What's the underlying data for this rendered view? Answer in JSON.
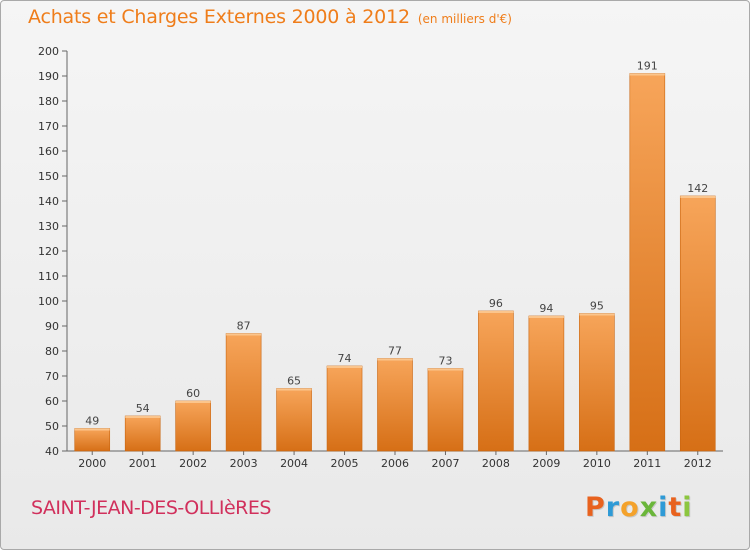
{
  "header": {
    "title": "Achats et Charges Externes 2000 à 2012",
    "subtitle": "(en milliers d'€)"
  },
  "footer": {
    "commune": "SAINT-JEAN-DES-OLLIèRES"
  },
  "logo": {
    "letters": [
      "P",
      "r",
      "o",
      "x",
      "i",
      "t",
      "i"
    ],
    "colors": [
      "#e8621e",
      "#2e9ad6",
      "#f4a22b",
      "#6ab63a",
      "#2e9ad6",
      "#e8621e",
      "#8cc63f"
    ]
  },
  "chart_data": {
    "type": "bar",
    "title": "Achats et Charges Externes 2000 à 2012",
    "subtitle": "(en milliers d'€)",
    "categories": [
      "2000",
      "2001",
      "2002",
      "2003",
      "2004",
      "2005",
      "2006",
      "2007",
      "2008",
      "2009",
      "2010",
      "2011",
      "2012"
    ],
    "values": [
      49,
      54,
      60,
      87,
      65,
      74,
      77,
      73,
      96,
      94,
      95,
      191,
      142
    ],
    "ylim": [
      40,
      200
    ],
    "yticks": [
      40,
      50,
      60,
      70,
      80,
      90,
      100,
      110,
      120,
      130,
      140,
      150,
      160,
      170,
      180,
      190,
      200
    ],
    "grid": false,
    "bar_color": "#ef8a2c",
    "bar_color_light": "#f7a55a",
    "bar_color_dark": "#d66f16"
  }
}
